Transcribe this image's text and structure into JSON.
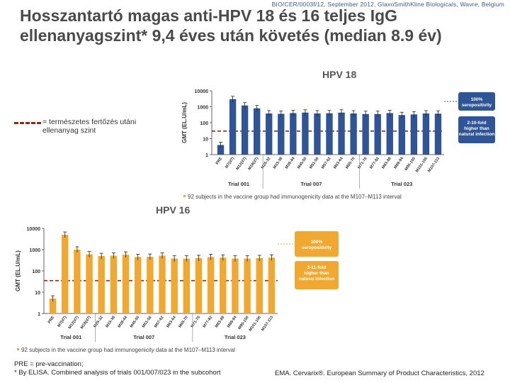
{
  "header": {
    "source": "BIO/CER/0003f/12, September 2012, GlaxoSmithKline Biologicals, Wavre, Belgium",
    "title": "Hosszantartó magas anti-HPV 18 és 16 teljes IgG ellenanyagszint* 9,4 éves után követés  (median 8.9 év)"
  },
  "legend": {
    "line1": "= természetes fertőzés utáni",
    "line2": "ellenanyag szint",
    "color": "#8b2a1a"
  },
  "chart_data": [
    {
      "type": "bar",
      "title": "HPV 18",
      "ylabel": "GMT (EL.U/mL)",
      "yscale": "log",
      "ylim": [
        1,
        10000
      ],
      "yticks": [
        "10000",
        "1000",
        "100",
        "10",
        "1"
      ],
      "bar_color": "#2f5597",
      "categories": [
        "PRE",
        "M7",
        "M12",
        "M18",
        "M25-32",
        "M33-38",
        "M39-44",
        "M45-50",
        "M51-56",
        "M57-62",
        "M63-64",
        "M65-70",
        "M71-76",
        "M77-82",
        "M83-88",
        "M89-94",
        "M95-100",
        "M101-106",
        "M107-113"
      ],
      "category_labels": [
        "PRE",
        "M7(d7)",
        "M12(d7)",
        "M18(d7)",
        "M25-32",
        "M33-38",
        "M39-44",
        "M45-50",
        "M51-56",
        "M57-62",
        "M63-64",
        "M65-70",
        "M71-76",
        "M77-82",
        "M83-88",
        "M89-94",
        "M95-100",
        "M101-106",
        "M107-113"
      ],
      "values": [
        4,
        3000,
        1200,
        800,
        380,
        360,
        400,
        430,
        380,
        390,
        430,
        380,
        350,
        350,
        400,
        300,
        330,
        380,
        370
      ],
      "natural_infection_level": 30,
      "trials": [
        "Trial 001",
        "Trial 007",
        "Trial 023"
      ],
      "callouts": [
        "100% seropositivity",
        "2-10-fold higher than natural infection"
      ],
      "note": "92 subjects in the vaccine group had immunogenicity data at the M107–M113 interval"
    },
    {
      "type": "bar",
      "title": "HPV 16",
      "ylabel": "GMT (EL.U/mL)",
      "yscale": "log",
      "ylim": [
        1,
        10000
      ],
      "yticks": [
        "10000",
        "1000",
        "100",
        "10",
        "1"
      ],
      "bar_color": "#f0a830",
      "categories": [
        "PRE",
        "M7",
        "M12",
        "M18",
        "M25-32",
        "M33-38",
        "M39-44",
        "M45-50",
        "M51-56",
        "M57-62",
        "M63-64",
        "M65-70",
        "M71-76",
        "M77-82",
        "M83-88",
        "M89-94",
        "M95-100",
        "M101-106",
        "M107-113"
      ],
      "category_labels": [
        "PRE",
        "M7(d7)",
        "M12(d7)",
        "M18(d7)",
        "M25-32",
        "M33-38",
        "M39-44",
        "M45-50",
        "M51-56",
        "M57-62",
        "M63-64",
        "M65-70",
        "M71-76",
        "M77-82",
        "M83-88",
        "M89-94",
        "M95-100",
        "M101-106",
        "M107-113"
      ],
      "values": [
        5,
        5000,
        1000,
        600,
        500,
        520,
        580,
        450,
        460,
        520,
        380,
        380,
        400,
        450,
        420,
        380,
        380,
        400,
        420
      ],
      "natural_infection_level": 35,
      "trials": [
        "Trial 001",
        "Trial 007",
        "Trial 023"
      ],
      "callouts": [
        "100% seropositivity",
        "2-11-fold higher than natural infection"
      ],
      "note": "92 subjects in the vaccine group had immunogenicity data at the M107–M113 interval"
    }
  ],
  "footer": {
    "line1": "PRE = pre-vaccination;",
    "line2": "* By ELISA. Combined analysis of trials 001/007/023 in the subcohort",
    "right": "EMA. Cervarix®. European Summary of Product Characteristics, 2012"
  }
}
